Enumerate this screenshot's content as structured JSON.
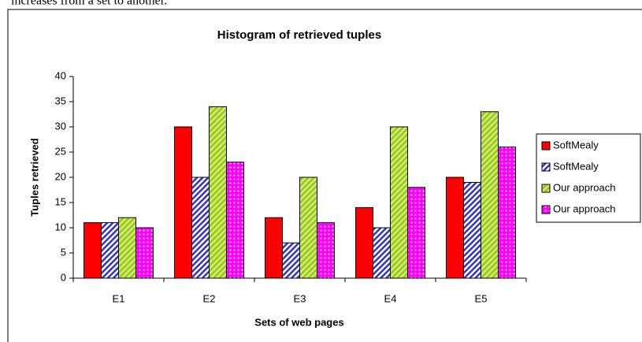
{
  "document_text": "increases from a set to another.",
  "chart_data": {
    "type": "bar",
    "title": "Histogram of retrieved tuples",
    "x_label": "Sets of web pages",
    "y_label": "Tuples retrieved",
    "categories": [
      "E1",
      "E2",
      "E3",
      "E4",
      "E5"
    ],
    "series": [
      {
        "name": "SoftMealy",
        "color": "#ff0000",
        "pattern": "solid",
        "values": [
          11,
          30,
          12,
          14,
          20
        ]
      },
      {
        "name": "SoftMealy",
        "color": "#3333cc",
        "pattern": "hatch",
        "values": [
          11,
          20,
          7,
          10,
          19
        ]
      },
      {
        "name": "Our approach",
        "color": "#99cc00",
        "pattern": "hatch",
        "values": [
          12,
          34,
          20,
          30,
          33
        ]
      },
      {
        "name": "Our approach",
        "color": "#ff00ff",
        "pattern": "dots",
        "values": [
          10,
          23,
          11,
          18,
          26
        ]
      }
    ],
    "ylim": [
      0,
      40
    ],
    "yticks": [
      0,
      5,
      10,
      15,
      20,
      25,
      30,
      35,
      40
    ],
    "grid": false,
    "legend": "right"
  }
}
